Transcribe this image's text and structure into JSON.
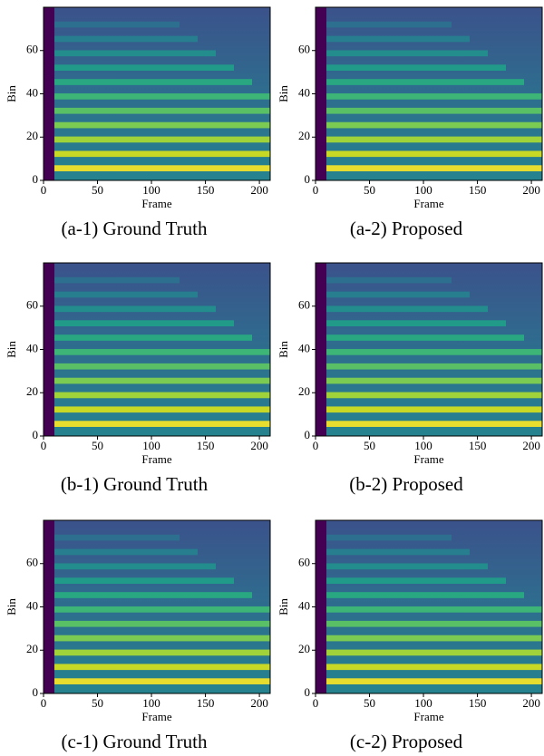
{
  "chart_data": [
    {
      "type": "heatmap",
      "caption": "(a-1) Ground Truth",
      "xlabel": "Frame",
      "ylabel": "Bin",
      "xlim": [
        0,
        210
      ],
      "ylim": [
        0,
        80
      ],
      "xticks": [
        0,
        50,
        100,
        150,
        200
      ],
      "yticks": [
        0,
        20,
        40,
        60
      ],
      "colormap": "viridis"
    },
    {
      "type": "heatmap",
      "caption": "(a-2) Proposed",
      "xlabel": "Frame",
      "ylabel": "Bin",
      "xlim": [
        0,
        210
      ],
      "ylim": [
        0,
        80
      ],
      "xticks": [
        0,
        50,
        100,
        150,
        200
      ],
      "yticks": [
        0,
        20,
        40,
        60
      ],
      "colormap": "viridis"
    },
    {
      "type": "heatmap",
      "caption": "(b-1) Ground Truth",
      "xlabel": "Frame",
      "ylabel": "Bin",
      "xlim": [
        0,
        210
      ],
      "ylim": [
        0,
        80
      ],
      "xticks": [
        0,
        50,
        100,
        150,
        200
      ],
      "yticks": [
        0,
        20,
        40,
        60
      ],
      "colormap": "viridis"
    },
    {
      "type": "heatmap",
      "caption": "(b-2) Proposed",
      "xlabel": "Frame",
      "ylabel": "Bin",
      "xlim": [
        0,
        210
      ],
      "ylim": [
        0,
        80
      ],
      "xticks": [
        0,
        50,
        100,
        150,
        200
      ],
      "yticks": [
        0,
        20,
        40,
        60
      ],
      "colormap": "viridis"
    },
    {
      "type": "heatmap",
      "caption": "(c-1) Ground Truth",
      "xlabel": "Frame",
      "ylabel": "Bin",
      "xlim": [
        0,
        210
      ],
      "ylim": [
        0,
        80
      ],
      "xticks": [
        0,
        50,
        100,
        150,
        200
      ],
      "yticks": [
        0,
        20,
        40,
        60
      ],
      "colormap": "viridis"
    },
    {
      "type": "heatmap",
      "caption": "(c-2) Proposed",
      "xlabel": "Frame",
      "ylabel": "Bin",
      "xlim": [
        0,
        210
      ],
      "ylim": [
        0,
        80
      ],
      "xticks": [
        0,
        50,
        100,
        150,
        200
      ],
      "yticks": [
        0,
        20,
        40,
        60
      ],
      "colormap": "viridis"
    }
  ]
}
